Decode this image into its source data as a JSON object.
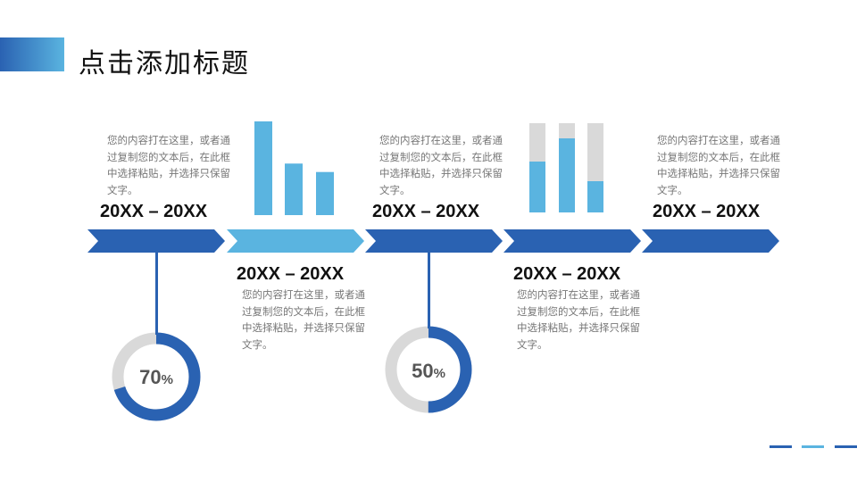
{
  "title": "点击添加标题",
  "colors": {
    "dark_blue": "#2a62b2",
    "light_blue": "#5ab4e0",
    "gray": "#d9d9d9"
  },
  "stages": [
    {
      "date": "20XX – 20XX",
      "text": "您的内容打在这里，或者通过复制您的文本后，在此框中选择粘贴，并选择只保留文字。"
    },
    {
      "date": "20XX – 20XX",
      "text": "您的内容打在这里，或者通过复制您的文本后，在此框中选择粘贴，并选择只保留文字。"
    },
    {
      "date": "20XX – 20XX",
      "text": "您的内容打在这里，或者通过复制您的文本后，在此框中选择粘贴，并选择只保留文字。"
    },
    {
      "date": "20XX – 20XX",
      "text": "您的内容打在这里，或者通过复制您的文本后，在此框中选择粘贴，并选择只保留文字。"
    },
    {
      "date": "20XX – 20XX",
      "text": "您的内容打在这里，或者通过复制您的文本后，在此框中选择粘贴，并选择只保留文字。"
    }
  ],
  "donuts": [
    {
      "value": "70",
      "unit": "%",
      "fraction": 0.7
    },
    {
      "value": "50",
      "unit": "%",
      "fraction": 0.5
    }
  ],
  "bar_chart_1": {
    "values": [
      1.0,
      0.55,
      0.46
    ]
  },
  "bar_chart_2": {
    "values": [
      0.57,
      0.83,
      0.35
    ]
  }
}
